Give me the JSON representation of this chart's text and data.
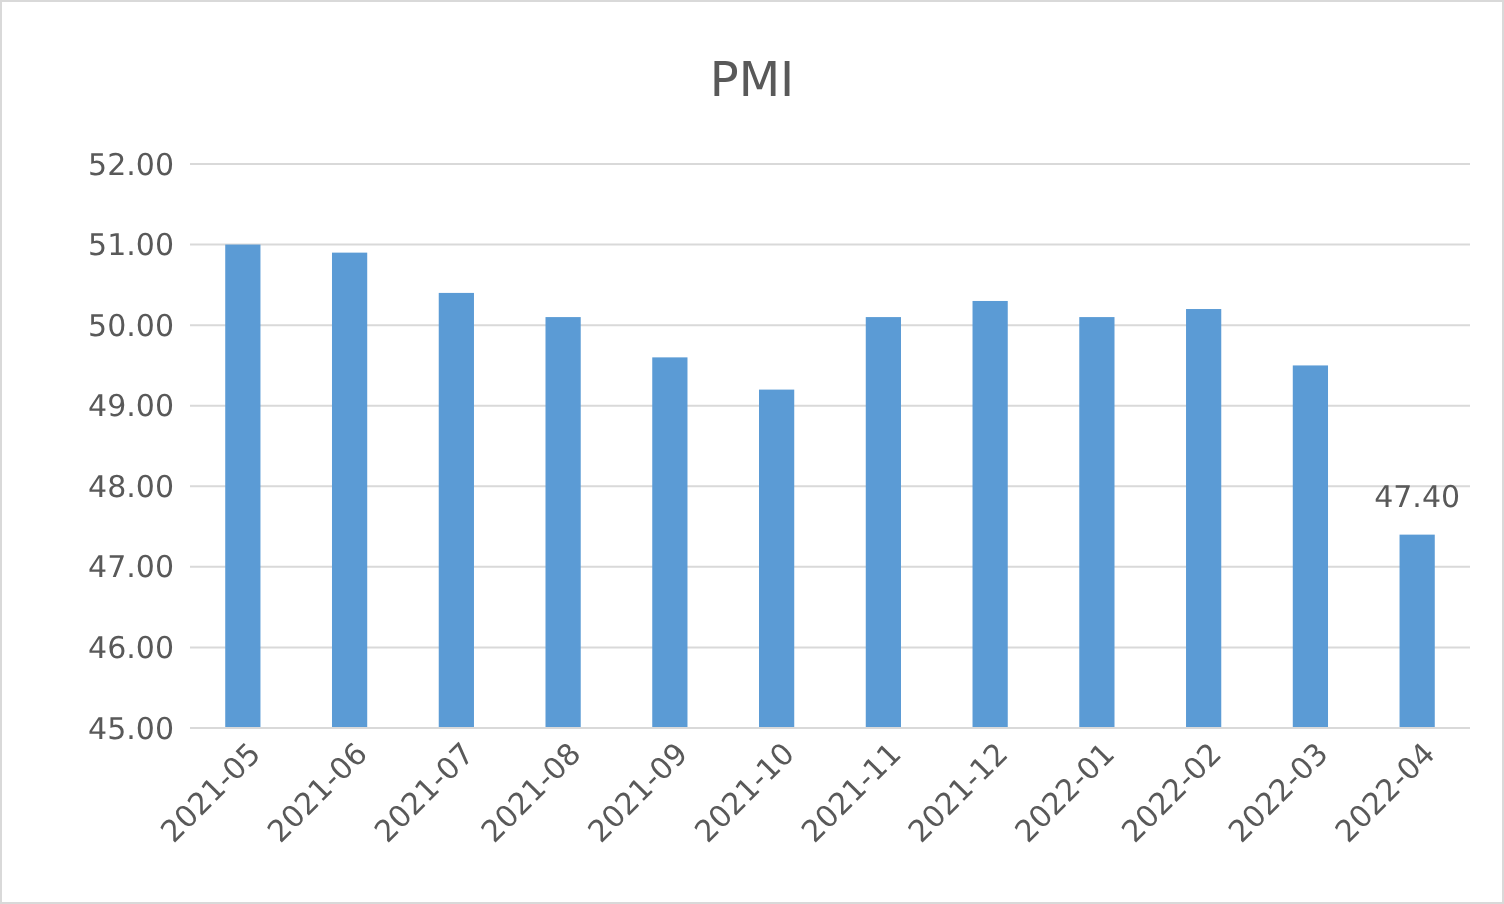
{
  "chart_data": {
    "type": "bar",
    "title": "PMI",
    "categories": [
      "2021-05",
      "2021-06",
      "2021-07",
      "2021-08",
      "2021-09",
      "2021-10",
      "2021-11",
      "2021-12",
      "2022-01",
      "2022-02",
      "2022-03",
      "2022-04"
    ],
    "values": [
      51.0,
      50.9,
      50.4,
      50.1,
      49.6,
      49.2,
      50.1,
      50.3,
      50.1,
      50.2,
      49.5,
      47.4
    ],
    "value_labels": [
      null,
      null,
      null,
      null,
      null,
      null,
      null,
      null,
      null,
      null,
      null,
      "47.40"
    ],
    "color": "#5b9bd5",
    "ylim": [
      45,
      52
    ],
    "yticks": [
      {
        "value": 45,
        "label": "45.00"
      },
      {
        "value": 46,
        "label": "46.00"
      },
      {
        "value": 47,
        "label": "47.00"
      },
      {
        "value": 48,
        "label": "48.00"
      },
      {
        "value": 49,
        "label": "49.00"
      },
      {
        "value": 50,
        "label": "50.00"
      },
      {
        "value": 51,
        "label": "51.00"
      },
      {
        "value": 52,
        "label": "52.00"
      }
    ],
    "grid": "y"
  }
}
